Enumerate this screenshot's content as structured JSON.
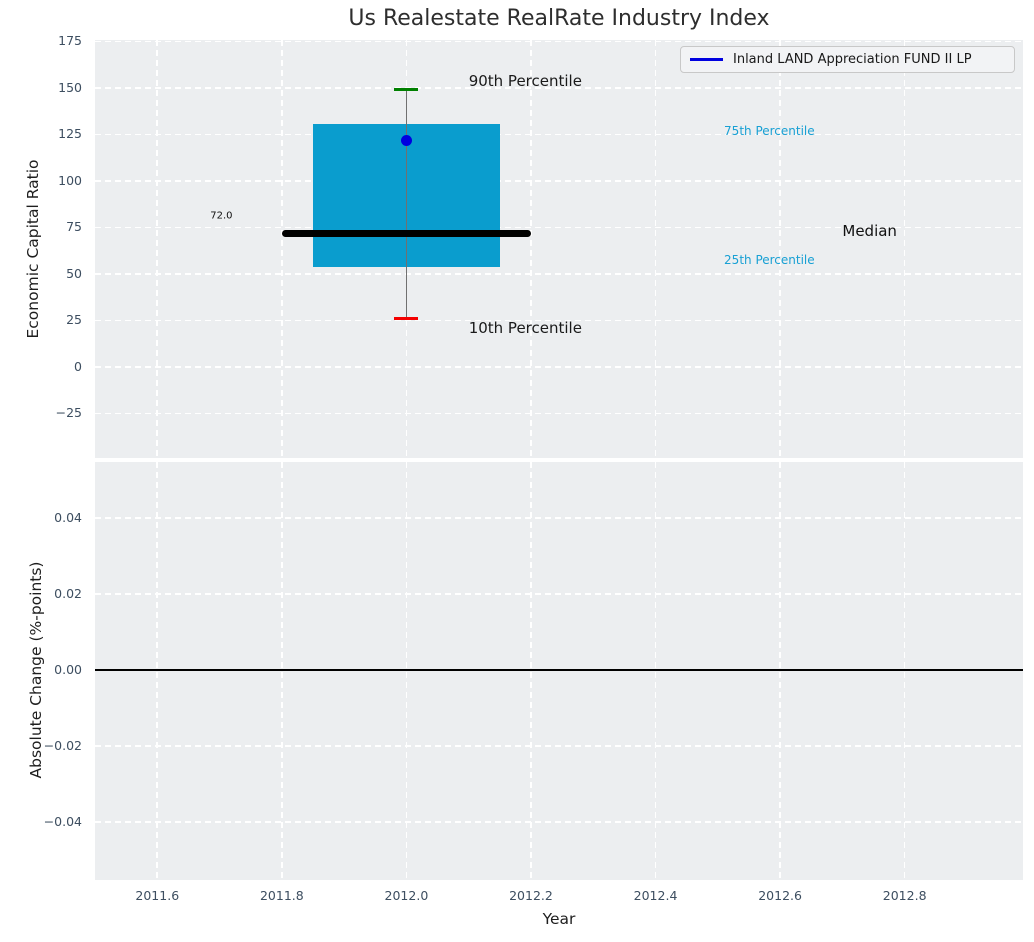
{
  "figure": {
    "background": "#ffffff",
    "plot_background": "#eceef0",
    "grid_color": "#ffffff",
    "tick_color": "#3d4e60",
    "label_color": "#1e1e1e"
  },
  "legend": {
    "label": "Inland LAND Appreciation FUND II LP",
    "line_color": "#0000e0",
    "background": "#f2f3f5",
    "border_color": "#c8c8c8",
    "position": "upper right"
  },
  "chart_data": [
    {
      "type": "boxplot",
      "title": "Us Realestate RealRate Industry Index",
      "ylabel": "Economic Capital Ratio",
      "xlabel": "",
      "xlim": [
        2011.5,
        2012.99
      ],
      "ylim": [
        -49.0,
        175.8
      ],
      "grid": "white-dashed",
      "legend_position": "upper right",
      "legend_entries": [
        {
          "label": "Inland LAND Appreciation FUND II LP",
          "color": "#0000e0"
        }
      ],
      "yticks": [
        {
          "value": 175,
          "label": "175"
        },
        {
          "value": 150,
          "label": "150"
        },
        {
          "value": 125,
          "label": "125"
        },
        {
          "value": 100,
          "label": "100"
        },
        {
          "value": 75,
          "label": "75"
        },
        {
          "value": 50,
          "label": "50"
        },
        {
          "value": 25,
          "label": "25"
        },
        {
          "value": 0,
          "label": "0"
        },
        {
          "value": -25,
          "label": "−25"
        }
      ],
      "box": {
        "x": 2012.0,
        "box_x_range": [
          2011.85,
          2012.15
        ],
        "median_x_range": [
          2011.8,
          2012.2
        ],
        "p10": 26,
        "p25": 53.5,
        "median": 72.0,
        "p75": 130.5,
        "p90": 149,
        "fund_value": 122,
        "median_label": "72.0"
      },
      "colors": {
        "box": "#0a9dce",
        "median": "#000000",
        "whisker": "#707070",
        "cap_90": "#008000",
        "cap_10": "#f40000",
        "fund_dot": "#0000e0"
      },
      "annotations": [
        {
          "text": "90th Percentile",
          "x": 2012.1,
          "y": 154,
          "color": "#1a1a1a",
          "size": 15
        },
        {
          "text": "10th Percentile",
          "x": 2012.1,
          "y": 21,
          "color": "#1a1a1a",
          "size": 15
        },
        {
          "text": "75th Percentile",
          "x": 2012.51,
          "y": 127,
          "color": "#18a0d4",
          "size": 12
        },
        {
          "text": "25th Percentile",
          "x": 2012.51,
          "y": 57.5,
          "color": "#18a0d4",
          "size": 12
        },
        {
          "text": "Median",
          "x": 2012.7,
          "y": 73,
          "color": "#111111",
          "size": 15
        },
        {
          "text": "72.0",
          "x": 2011.685,
          "y": 81,
          "color": "#111111",
          "size": 10
        }
      ]
    },
    {
      "type": "line",
      "ylabel": "Absolute Change (%-points)",
      "xlabel": "Year",
      "xlim": [
        2011.5,
        2012.99
      ],
      "ylim": [
        -0.0553,
        0.0547
      ],
      "grid": "white-dashed",
      "zero_line": 0.0,
      "zero_line_color": "#000000",
      "series": [],
      "yticks": [
        {
          "value": 0.04,
          "label": "0.04"
        },
        {
          "value": 0.02,
          "label": "0.02"
        },
        {
          "value": 0.0,
          "label": "0.00"
        },
        {
          "value": -0.02,
          "label": "−0.02"
        },
        {
          "value": -0.04,
          "label": "−0.04"
        }
      ],
      "xticks": [
        {
          "value": 2011.6,
          "label": "2011.6"
        },
        {
          "value": 2011.8,
          "label": "2011.8"
        },
        {
          "value": 2012.0,
          "label": "2012.0"
        },
        {
          "value": 2012.2,
          "label": "2012.2"
        },
        {
          "value": 2012.4,
          "label": "2012.4"
        },
        {
          "value": 2012.6,
          "label": "2012.6"
        },
        {
          "value": 2012.8,
          "label": "2012.8"
        }
      ]
    }
  ]
}
